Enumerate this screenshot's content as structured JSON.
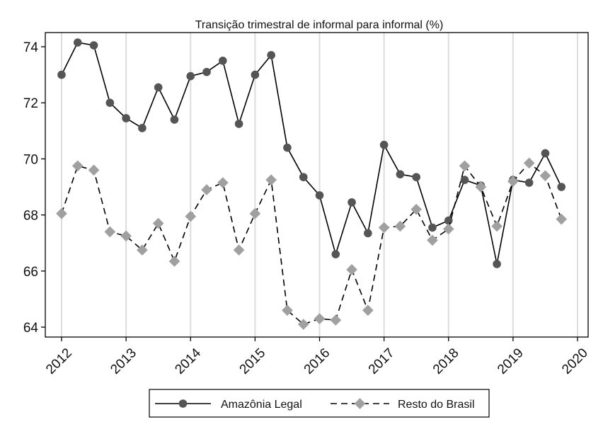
{
  "chart_data": {
    "type": "line",
    "title": "Transição trimestral de informal para informal (%)",
    "xlabel": "",
    "ylabel": "",
    "xlim": [
      2012,
      2020
    ],
    "ylim": [
      63.6,
      74.6
    ],
    "xticks": [
      2012,
      2013,
      2014,
      2015,
      2016,
      2017,
      2018,
      2019,
      2020
    ],
    "xtick_labels": [
      "2012",
      "2013",
      "2014",
      "2015",
      "2016",
      "2017",
      "2018",
      "2019",
      "2020"
    ],
    "yticks": [
      64,
      66,
      68,
      70,
      72,
      74
    ],
    "ytick_labels": [
      "64",
      "66",
      "68",
      "70",
      "72",
      "74"
    ],
    "grid": "vertical",
    "legend_position": "bottom",
    "x": [
      2012.0,
      2012.25,
      2012.5,
      2012.75,
      2013.0,
      2013.25,
      2013.5,
      2013.75,
      2014.0,
      2014.25,
      2014.5,
      2014.75,
      2015.0,
      2015.25,
      2015.5,
      2015.75,
      2016.0,
      2016.25,
      2016.5,
      2016.75,
      2017.0,
      2017.25,
      2017.5,
      2017.75,
      2018.0,
      2018.25,
      2018.5,
      2018.75,
      2019.0,
      2019.25,
      2019.5,
      2019.75
    ],
    "series": [
      {
        "name": "Amazônia Legal",
        "color": "#555555",
        "line_color": "#000000",
        "marker": "circle",
        "line_style": "solid",
        "values": [
          73.0,
          74.15,
          74.05,
          72.0,
          71.45,
          71.1,
          72.55,
          71.4,
          72.95,
          73.1,
          73.5,
          71.25,
          73.0,
          73.7,
          70.4,
          69.35,
          68.7,
          66.6,
          68.45,
          67.35,
          70.5,
          69.45,
          69.35,
          67.55,
          67.8,
          69.25,
          69.05,
          66.25,
          69.25,
          69.15,
          70.2,
          69.0
        ]
      },
      {
        "name": "Resto do Brasil",
        "color": "#a0a0a0",
        "line_color": "#000000",
        "marker": "diamond",
        "line_style": "dashed",
        "values": [
          68.05,
          69.75,
          69.6,
          67.4,
          67.25,
          66.75,
          67.7,
          66.35,
          67.95,
          68.9,
          69.15,
          66.75,
          68.05,
          69.25,
          64.6,
          64.1,
          64.3,
          64.25,
          66.05,
          64.6,
          67.55,
          67.6,
          68.2,
          67.1,
          67.5,
          69.75,
          69.0,
          67.6,
          69.2,
          69.85,
          69.4,
          67.85
        ]
      }
    ]
  }
}
